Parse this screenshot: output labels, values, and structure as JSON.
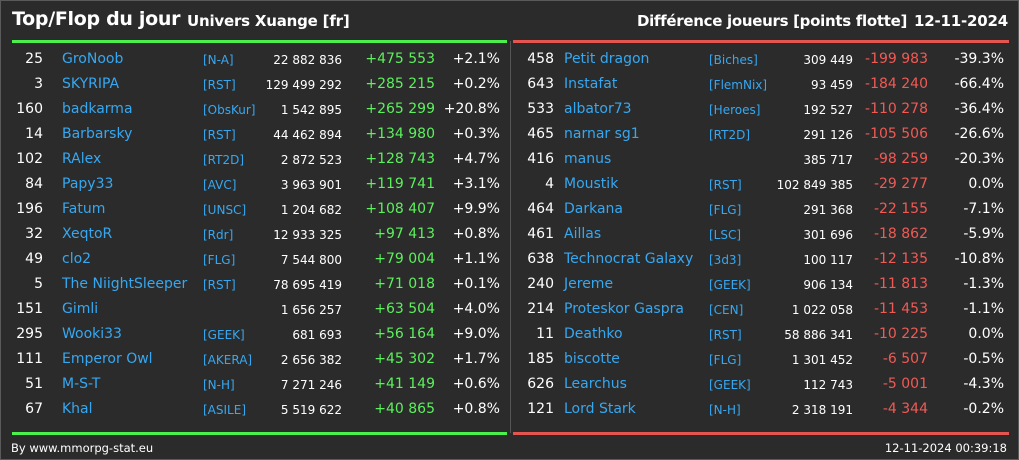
{
  "header": {
    "title": "Top/Flop du jour",
    "universe": "Univers Xuange [fr]",
    "metric": "Différence joueurs [points flotte]",
    "date": "12-11-2024"
  },
  "colors": {
    "background": "#2b2b2b",
    "top_bar": "#4cf04c",
    "flop_bar": "#e55550",
    "link": "#36a8f2",
    "positive": "#5cf05c",
    "negative": "#f05a55"
  },
  "top": [
    {
      "rank": "25",
      "name": "GroNoob",
      "guild": "[N-A]",
      "score": "22 882 836",
      "diff": "+475 553",
      "pct": "+2.1%"
    },
    {
      "rank": "3",
      "name": "SKYRIPA",
      "guild": "[RST]",
      "score": "129 499 292",
      "diff": "+285 215",
      "pct": "+0.2%"
    },
    {
      "rank": "160",
      "name": "badkarma",
      "guild": "[ObsKur]",
      "score": "1 542 895",
      "diff": "+265 299",
      "pct": "+20.8%"
    },
    {
      "rank": "14",
      "name": "Barbarsky",
      "guild": "[RST]",
      "score": "44 462 894",
      "diff": "+134 980",
      "pct": "+0.3%"
    },
    {
      "rank": "102",
      "name": "RAlex",
      "guild": "[RT2D]",
      "score": "2 872 523",
      "diff": "+128 743",
      "pct": "+4.7%"
    },
    {
      "rank": "84",
      "name": "Papy33",
      "guild": "[AVC]",
      "score": "3 963 901",
      "diff": "+119 741",
      "pct": "+3.1%"
    },
    {
      "rank": "196",
      "name": "Fatum",
      "guild": "[UNSC]",
      "score": "1 204 682",
      "diff": "+108 407",
      "pct": "+9.9%"
    },
    {
      "rank": "32",
      "name": "XeqtoR",
      "guild": "[Rdr]",
      "score": "12 933 325",
      "diff": "+97 413",
      "pct": "+0.8%"
    },
    {
      "rank": "49",
      "name": "clo2",
      "guild": "[FLG]",
      "score": "7 544 800",
      "diff": "+79 004",
      "pct": "+1.1%"
    },
    {
      "rank": "5",
      "name": "The NiightSleeper",
      "guild": "[RST]",
      "score": "78 695 419",
      "diff": "+71 018",
      "pct": "+0.1%"
    },
    {
      "rank": "151",
      "name": "Gimli",
      "guild": "",
      "score": "1 656 257",
      "diff": "+63 504",
      "pct": "+4.0%"
    },
    {
      "rank": "295",
      "name": "Wooki33",
      "guild": "[GEEK]",
      "score": "681 693",
      "diff": "+56 164",
      "pct": "+9.0%"
    },
    {
      "rank": "111",
      "name": "Emperor Owl",
      "guild": "[AKERA]",
      "score": "2 656 382",
      "diff": "+45 302",
      "pct": "+1.7%"
    },
    {
      "rank": "51",
      "name": "M-S-T",
      "guild": "[N-H]",
      "score": "7 271 246",
      "diff": "+41 149",
      "pct": "+0.6%"
    },
    {
      "rank": "67",
      "name": "Khal",
      "guild": "[ASILE]",
      "score": "5 519 622",
      "diff": "+40 865",
      "pct": "+0.8%"
    }
  ],
  "flop": [
    {
      "rank": "458",
      "name": "Petit dragon",
      "guild": "[Biches]",
      "score": "309 449",
      "diff": "-199 983",
      "pct": "-39.3%"
    },
    {
      "rank": "643",
      "name": "Instafat",
      "guild": "[FlemNix]",
      "score": "93 459",
      "diff": "-184 240",
      "pct": "-66.4%"
    },
    {
      "rank": "533",
      "name": "albator73",
      "guild": "[Heroes]",
      "score": "192 527",
      "diff": "-110 278",
      "pct": "-36.4%"
    },
    {
      "rank": "465",
      "name": "narnar sg1",
      "guild": "[RT2D]",
      "score": "291 126",
      "diff": "-105 506",
      "pct": "-26.6%"
    },
    {
      "rank": "416",
      "name": "manus",
      "guild": "",
      "score": "385 717",
      "diff": "-98 259",
      "pct": "-20.3%"
    },
    {
      "rank": "4",
      "name": "Moustik",
      "guild": "[RST]",
      "score": "102 849 385",
      "diff": "-29 277",
      "pct": "0.0%"
    },
    {
      "rank": "464",
      "name": "Darkana",
      "guild": "[FLG]",
      "score": "291 368",
      "diff": "-22 155",
      "pct": "-7.1%"
    },
    {
      "rank": "461",
      "name": "Aillas",
      "guild": "[LSC]",
      "score": "301 696",
      "diff": "-18 862",
      "pct": "-5.9%"
    },
    {
      "rank": "638",
      "name": "Technocrat Galaxy",
      "guild": "[3d3]",
      "score": "100 117",
      "diff": "-12 135",
      "pct": "-10.8%"
    },
    {
      "rank": "240",
      "name": "Jereme",
      "guild": "[GEEK]",
      "score": "906 134",
      "diff": "-11 813",
      "pct": "-1.3%"
    },
    {
      "rank": "214",
      "name": "Proteskor Gaspra",
      "guild": "[CEN]",
      "score": "1 022 058",
      "diff": "-11 453",
      "pct": "-1.1%"
    },
    {
      "rank": "11",
      "name": "Deathko",
      "guild": "[RST]",
      "score": "58 886 341",
      "diff": "-10 225",
      "pct": "0.0%"
    },
    {
      "rank": "185",
      "name": "biscotte",
      "guild": "[FLG]",
      "score": "1 301 452",
      "diff": "-6 507",
      "pct": "-0.5%"
    },
    {
      "rank": "626",
      "name": "Learchus",
      "guild": "[GEEK]",
      "score": "112 743",
      "diff": "-5 001",
      "pct": "-4.3%"
    },
    {
      "rank": "121",
      "name": "Lord Stark",
      "guild": "[N-H]",
      "score": "2 318 191",
      "diff": "-4 344",
      "pct": "-0.2%"
    }
  ],
  "footer": {
    "credit": "By www.mmorpg-stat.eu",
    "timestamp": "12-11-2024 00:39:18"
  }
}
